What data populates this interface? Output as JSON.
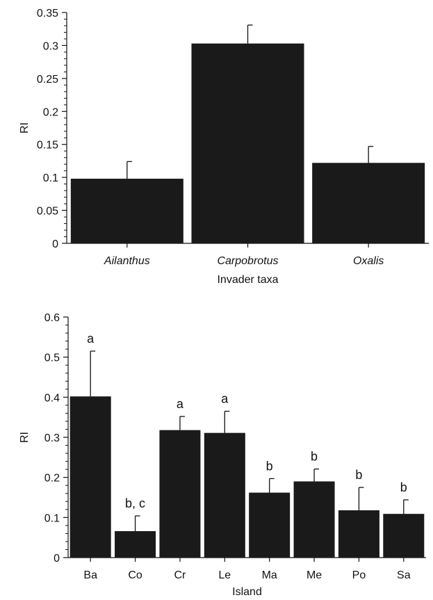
{
  "colors": {
    "bar": "#1a1a1a",
    "axis": "#111111",
    "background": "#ffffff"
  },
  "chart_data": [
    {
      "type": "bar",
      "ylabel": "RI",
      "xlabel": "Invader taxa",
      "ylim": [
        0,
        0.35
      ],
      "yticks": [
        "0",
        "0.05",
        "0.1",
        "0.15",
        "0.2",
        "0.25",
        "0.3",
        "0.35"
      ],
      "categories": [
        "Ailanthus",
        "Carpobrotus",
        "Oxalis"
      ],
      "values": [
        0.098,
        0.303,
        0.122
      ],
      "errors": [
        0.026,
        0.028,
        0.025
      ],
      "category_style": "italic",
      "grid": false
    },
    {
      "type": "bar",
      "ylabel": "RI",
      "xlabel": "Island",
      "ylim": [
        0,
        0.6
      ],
      "yticks": [
        "0",
        "0.1",
        "0.2",
        "0.3",
        "0.4",
        "0.5",
        "0.6"
      ],
      "categories": [
        "Ba",
        "Co",
        "Cr",
        "Le",
        "Ma",
        "Me",
        "Po",
        "Sa"
      ],
      "values": [
        0.402,
        0.066,
        0.318,
        0.311,
        0.162,
        0.19,
        0.118,
        0.109
      ],
      "errors": [
        0.113,
        0.038,
        0.034,
        0.054,
        0.035,
        0.031,
        0.057,
        0.035
      ],
      "annotations": [
        "a",
        "b, c",
        "a",
        "a",
        "b",
        "b",
        "b",
        "b"
      ],
      "grid": false
    }
  ]
}
